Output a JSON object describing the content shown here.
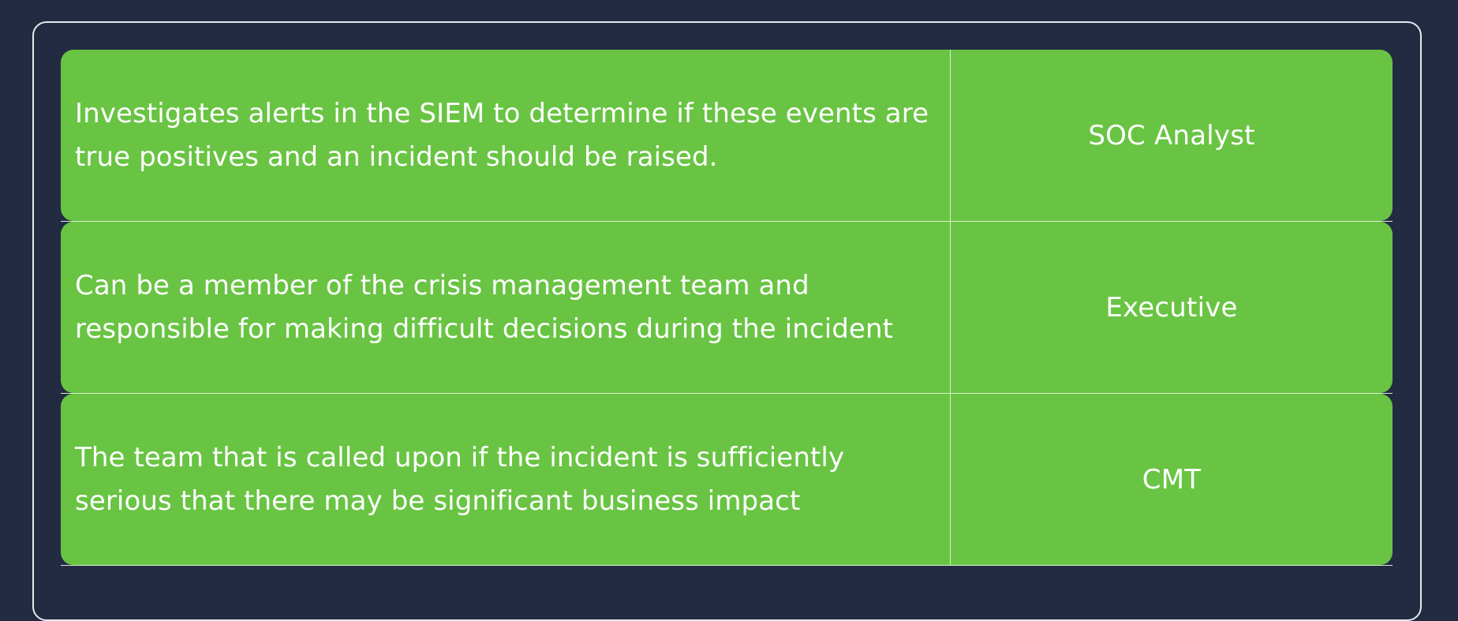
{
  "items": [
    {
      "description": "Investigates alerts in the SIEM to determine if these events are true positives and an incident should be raised.",
      "role": "SOC Analyst"
    },
    {
      "description": "Can be a member of the crisis management team and responsible for making difficult decisions during the incident",
      "role": "Executive"
    },
    {
      "description": "The team that is called upon if the incident is sufficiently serious that there may be significant business impact",
      "role": "CMT"
    }
  ]
}
